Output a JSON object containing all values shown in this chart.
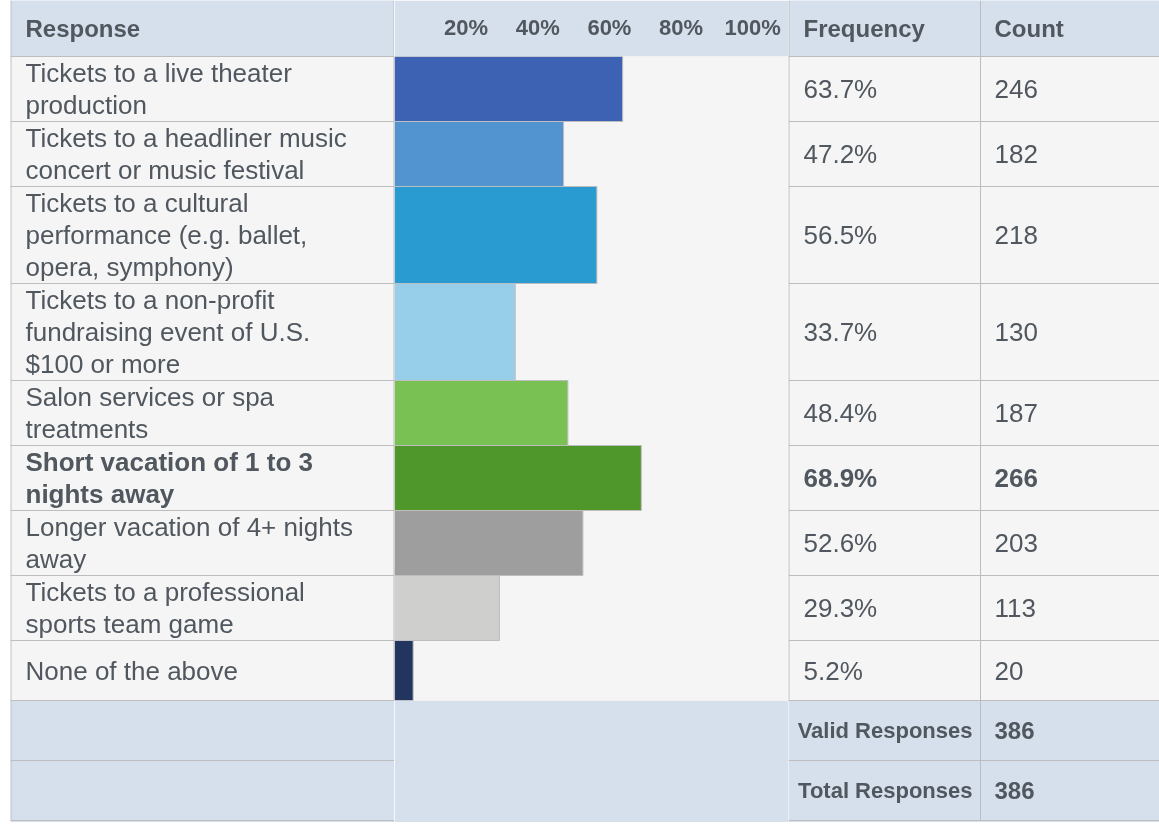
{
  "chart_data": {
    "type": "bar",
    "orientation": "horizontal",
    "ylabel": "Response",
    "categories": [
      "Tickets to a live theater production",
      "Tickets to a headliner music concert or music festival",
      "Tickets to a cultural performance (e.g. ballet, opera, symphony)",
      "Tickets to a non-profit fundraising event of U.S. $100 or more",
      "Salon services or spa treatments",
      "Short vacation of 1 to 3 nights away",
      "Longer vacation of 4+ nights away",
      "Tickets to a professional sports team game",
      "None of the above"
    ],
    "values": [
      63.7,
      47.2,
      56.5,
      33.7,
      48.4,
      68.9,
      52.6,
      29.3,
      5.2
    ],
    "colors": [
      "#3d62b3",
      "#5194cf",
      "#2a9bd0",
      "#97ceea",
      "#78c152",
      "#4f962b",
      "#9e9e9e",
      "#cfcfcd",
      "#22355f"
    ],
    "xlim": [
      0,
      110
    ],
    "xticks": [
      {
        "value": 20,
        "label": "20%"
      },
      {
        "value": 40,
        "label": "40%"
      },
      {
        "value": 60,
        "label": "60%"
      },
      {
        "value": 80,
        "label": "80%"
      },
      {
        "value": 100,
        "label": "100%"
      }
    ],
    "annotations": [
      "Frequency",
      "Count",
      "63.7%",
      "47.2%",
      "56.5%",
      "33.7%",
      "48.4%",
      "68.9%",
      "52.6%",
      "29.3%",
      "5.2%",
      "246",
      "182",
      "218",
      "130",
      "187",
      "266",
      "203",
      "113",
      "20",
      "Valid Responses",
      "386",
      "Total Responses",
      "386"
    ]
  }
}
